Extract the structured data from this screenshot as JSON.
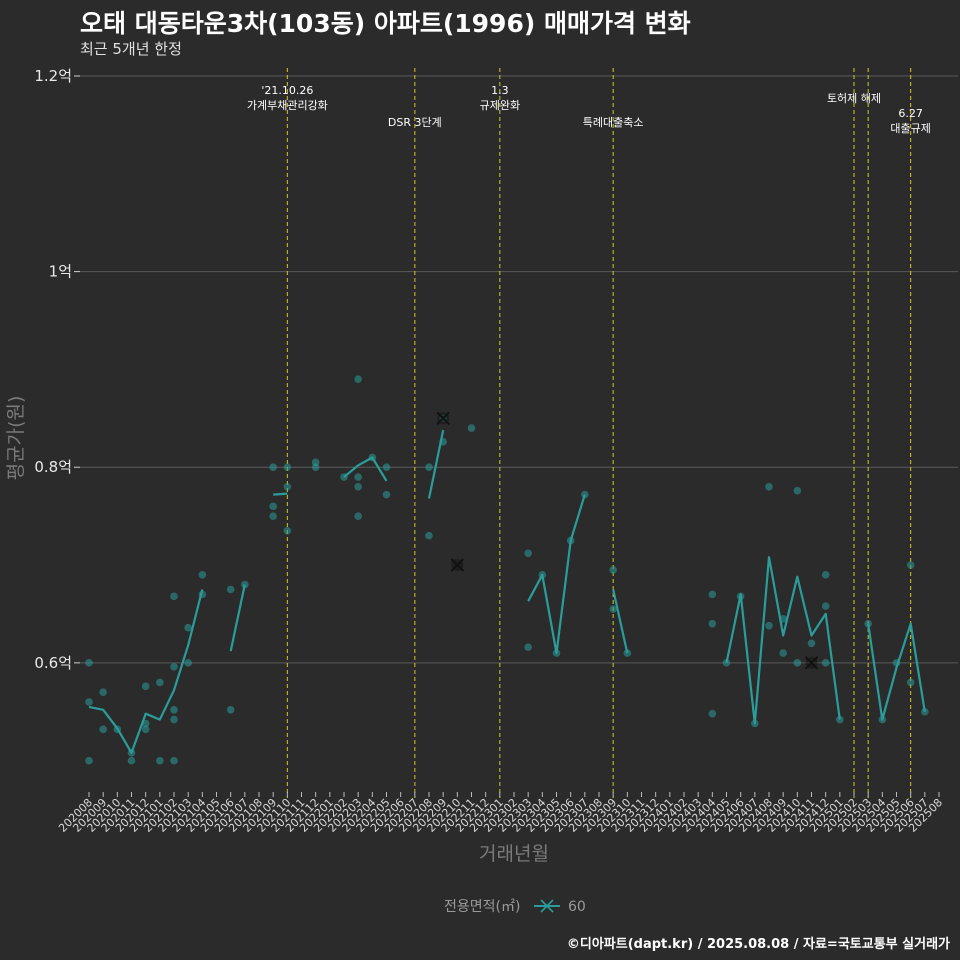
{
  "title": "오태 대동타운3차(103동) 아파트(1996) 매매가격 변화",
  "subtitle": "최근 5개년 한정",
  "credit": "©디아파트(dapt.kr) / 2025.08.08 / 자료=국토교통부 실거래가",
  "colors": {
    "background": "#2b2b2b",
    "series": "#2a9d9a",
    "grid": "#5a5a5a",
    "event_line": "#cccc22"
  },
  "chart_data": {
    "type": "line",
    "xlabel": "거래년월",
    "ylabel": "평균가(원)",
    "ylim": [
      0.47,
      1.2
    ],
    "yticks": [
      {
        "value": 0.6,
        "label": "0.6억"
      },
      {
        "value": 0.8,
        "label": "0.8억"
      },
      {
        "value": 1.0,
        "label": "1억"
      },
      {
        "value": 1.2,
        "label": "1.2억"
      }
    ],
    "months": [
      "202008",
      "202009",
      "202010",
      "202011",
      "202012",
      "202101",
      "202102",
      "202103",
      "202104",
      "202105",
      "202106",
      "202107",
      "202108",
      "202109",
      "202110",
      "202111",
      "202112",
      "202201",
      "202202",
      "202203",
      "202204",
      "202205",
      "202206",
      "202207",
      "202208",
      "202209",
      "202210",
      "202211",
      "202212",
      "202301",
      "202302",
      "202303",
      "202304",
      "202305",
      "202306",
      "202307",
      "202308",
      "202309",
      "202310",
      "202311",
      "202312",
      "202401",
      "202402",
      "202403",
      "202404",
      "202405",
      "202406",
      "202407",
      "202408",
      "202409",
      "202410",
      "202411",
      "202412",
      "202501",
      "202502",
      "202503",
      "202504",
      "202505",
      "202506",
      "202507",
      "202508"
    ],
    "legend": {
      "title": "전용면적(㎡)",
      "entries": [
        "60"
      ]
    },
    "series": [
      {
        "name": "60",
        "line_segments": [
          [
            [
              0,
              0.555
            ],
            [
              1,
              0.552
            ],
            [
              2,
              0.533
            ],
            [
              3,
              0.508
            ],
            [
              4,
              0.548
            ],
            [
              5,
              0.542
            ],
            [
              6,
              0.572
            ],
            [
              7,
              0.618
            ],
            [
              8,
              0.675
            ]
          ],
          [
            [
              10,
              0.612
            ],
            [
              11,
              0.68
            ]
          ],
          [
            [
              13,
              0.772
            ],
            [
              14,
              0.773
            ]
          ],
          [
            [
              18,
              0.79
            ],
            [
              19,
              0.802
            ],
            [
              20,
              0.81
            ],
            [
              21,
              0.786
            ]
          ],
          [
            [
              24,
              0.768
            ],
            [
              25,
              0.838
            ]
          ],
          [
            [
              31,
              0.663
            ],
            [
              32,
              0.69
            ],
            [
              33,
              0.61
            ],
            [
              34,
              0.725
            ],
            [
              35,
              0.772
            ]
          ],
          [
            [
              37,
              0.675
            ],
            [
              38,
              0.61
            ]
          ],
          [
            [
              45,
              0.6
            ],
            [
              46,
              0.67
            ],
            [
              47,
              0.538
            ],
            [
              48,
              0.708
            ],
            [
              49,
              0.628
            ],
            [
              50,
              0.688
            ],
            [
              51,
              0.628
            ],
            [
              52,
              0.65
            ],
            [
              53,
              0.542
            ]
          ],
          [
            [
              55,
              0.64
            ],
            [
              56,
              0.542
            ],
            [
              57,
              0.595
            ],
            [
              58,
              0.64
            ],
            [
              59,
              0.55
            ]
          ]
        ],
        "points": [
          [
            0,
            0.6
          ],
          [
            0,
            0.56
          ],
          [
            0,
            0.5
          ],
          [
            1,
            0.57
          ],
          [
            1,
            0.532
          ],
          [
            2,
            0.532
          ],
          [
            3,
            0.5
          ],
          [
            3,
            0.508
          ],
          [
            4,
            0.576
          ],
          [
            4,
            0.532
          ],
          [
            4,
            0.538
          ],
          [
            5,
            0.58
          ],
          [
            5,
            0.5
          ],
          [
            6,
            0.668
          ],
          [
            6,
            0.596
          ],
          [
            6,
            0.552
          ],
          [
            6,
            0.542
          ],
          [
            6,
            0.5
          ],
          [
            7,
            0.636
          ],
          [
            7,
            0.6
          ],
          [
            8,
            0.69
          ],
          [
            8,
            0.67
          ],
          [
            10,
            0.675
          ],
          [
            10,
            0.552
          ],
          [
            11,
            0.68
          ],
          [
            13,
            0.8
          ],
          [
            13,
            0.76
          ],
          [
            13,
            0.75
          ],
          [
            14,
            0.8
          ],
          [
            14,
            0.78
          ],
          [
            14,
            0.735
          ],
          [
            16,
            0.805
          ],
          [
            16,
            0.8
          ],
          [
            18,
            0.79
          ],
          [
            19,
            0.89
          ],
          [
            19,
            0.79
          ],
          [
            19,
            0.78
          ],
          [
            19,
            0.75
          ],
          [
            20,
            0.81
          ],
          [
            21,
            0.8
          ],
          [
            21,
            0.772
          ],
          [
            24,
            0.8
          ],
          [
            24,
            0.73
          ],
          [
            25,
            0.85
          ],
          [
            25,
            0.826
          ],
          [
            27,
            0.84
          ],
          [
            31,
            0.712
          ],
          [
            31,
            0.616
          ],
          [
            32,
            0.69
          ],
          [
            33,
            0.61
          ],
          [
            34,
            0.725
          ],
          [
            35,
            0.772
          ],
          [
            37,
            0.695
          ],
          [
            37,
            0.655
          ],
          [
            38,
            0.61
          ],
          [
            44,
            0.67
          ],
          [
            44,
            0.64
          ],
          [
            44,
            0.548
          ],
          [
            45,
            0.6
          ],
          [
            46,
            0.668
          ],
          [
            47,
            0.538
          ],
          [
            48,
            0.78
          ],
          [
            48,
            0.638
          ],
          [
            49,
            0.645
          ],
          [
            49,
            0.61
          ],
          [
            50,
            0.776
          ],
          [
            50,
            0.6
          ],
          [
            51,
            0.62
          ],
          [
            52,
            0.69
          ],
          [
            52,
            0.658
          ],
          [
            52,
            0.6
          ],
          [
            53,
            0.542
          ],
          [
            55,
            0.64
          ],
          [
            56,
            0.542
          ],
          [
            57,
            0.6
          ],
          [
            58,
            0.7
          ],
          [
            58,
            0.58
          ],
          [
            59,
            0.55
          ]
        ],
        "markers_x": [
          [
            25,
            0.85
          ],
          [
            26,
            0.7
          ],
          [
            51,
            0.6
          ]
        ]
      }
    ],
    "events": [
      {
        "index": 14,
        "lines": [
          "'21.10.26",
          "가계부채관리강화"
        ],
        "level": 0
      },
      {
        "index": 23,
        "lines": [
          "DSR 3단계"
        ],
        "level": 1
      },
      {
        "index": 29,
        "lines": [
          "1.3",
          "규제완화"
        ],
        "level": 0
      },
      {
        "index": 37,
        "lines": [
          "특례대출축소"
        ],
        "level": 1
      },
      {
        "index": 54,
        "lines": [
          "토허제 해제"
        ],
        "level": 2
      },
      {
        "index": 55,
        "lines": [],
        "level": 2
      },
      {
        "index": 58,
        "lines": [
          "6.27",
          "대출규제"
        ],
        "level": 3
      }
    ]
  }
}
